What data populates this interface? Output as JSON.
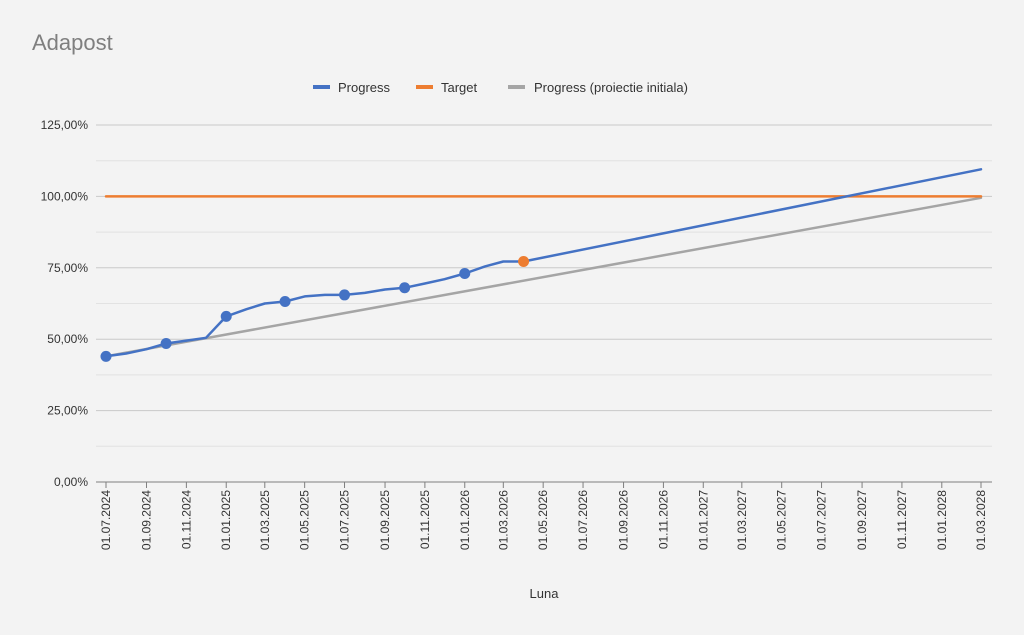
{
  "chart_data": {
    "type": "line",
    "title": "Adapost",
    "xlabel": "Luna",
    "ylabel": "",
    "ylim": [
      0,
      1.25
    ],
    "y_step": 0.25,
    "y_minor_step": 0.125,
    "y_tick_format": "percent_2dec_comma",
    "y_ticks": [
      "0,00%",
      "25,00%",
      "50,00%",
      "75,00%",
      "100,00%",
      "125,00%"
    ],
    "x_axis": {
      "type": "date",
      "start": "01.07.2024",
      "end": "01.03.2028",
      "tick_labels": [
        "01.07.2024",
        "01.09.2024",
        "01.11.2024",
        "01.01.2025",
        "01.03.2025",
        "01.05.2025",
        "01.07.2025",
        "01.09.2025",
        "01.11.2025",
        "01.01.2026",
        "01.03.2026",
        "01.05.2026",
        "01.07.2026",
        "01.09.2026",
        "01.11.2026",
        "01.01.2027",
        "01.03.2027",
        "01.05.2027",
        "01.07.2027",
        "01.09.2027",
        "01.11.2027",
        "01.01.2028",
        "01.03.2028"
      ]
    },
    "legend_position": "top",
    "grid": true,
    "series": [
      {
        "name": "Progress",
        "color": "#4472c4",
        "points": [
          {
            "x": "01.07.2024",
            "y": 0.44,
            "marker": true
          },
          {
            "x": "01.08.2024",
            "y": 0.45
          },
          {
            "x": "01.09.2024",
            "y": 0.465
          },
          {
            "x": "01.10.2024",
            "y": 0.485,
            "marker": true
          },
          {
            "x": "01.11.2024",
            "y": 0.495
          },
          {
            "x": "01.12.2024",
            "y": 0.505
          },
          {
            "x": "01.01.2025",
            "y": 0.58,
            "marker": true
          },
          {
            "x": "01.02.2025",
            "y": 0.605
          },
          {
            "x": "01.03.2025",
            "y": 0.625
          },
          {
            "x": "01.04.2025",
            "y": 0.632,
            "marker": true
          },
          {
            "x": "01.05.2025",
            "y": 0.65
          },
          {
            "x": "01.06.2025",
            "y": 0.655
          },
          {
            "x": "01.07.2025",
            "y": 0.655,
            "marker": true
          },
          {
            "x": "01.08.2025",
            "y": 0.662
          },
          {
            "x": "01.09.2025",
            "y": 0.674
          },
          {
            "x": "01.10.2025",
            "y": 0.68,
            "marker": true
          },
          {
            "x": "01.11.2025",
            "y": 0.695
          },
          {
            "x": "01.12.2025",
            "y": 0.71
          },
          {
            "x": "01.01.2026",
            "y": 0.73,
            "marker": true
          },
          {
            "x": "01.02.2026",
            "y": 0.755
          },
          {
            "x": "01.03.2026",
            "y": 0.772
          },
          {
            "x": "01.04.2026",
            "y": 0.772,
            "marker": true,
            "marker_color": "#ed7d31"
          },
          {
            "x": "01.03.2028",
            "y": 1.095
          }
        ]
      },
      {
        "name": "Target",
        "color": "#ed7d31",
        "points": [
          {
            "x": "01.07.2024",
            "y": 1.0
          },
          {
            "x": "01.03.2028",
            "y": 1.0
          }
        ]
      },
      {
        "name": "Progress (proiectie initiala)",
        "color": "#a5a5a5",
        "points": [
          {
            "x": "01.07.2024",
            "y": 0.44
          },
          {
            "x": "01.03.2028",
            "y": 0.995
          }
        ]
      }
    ]
  }
}
